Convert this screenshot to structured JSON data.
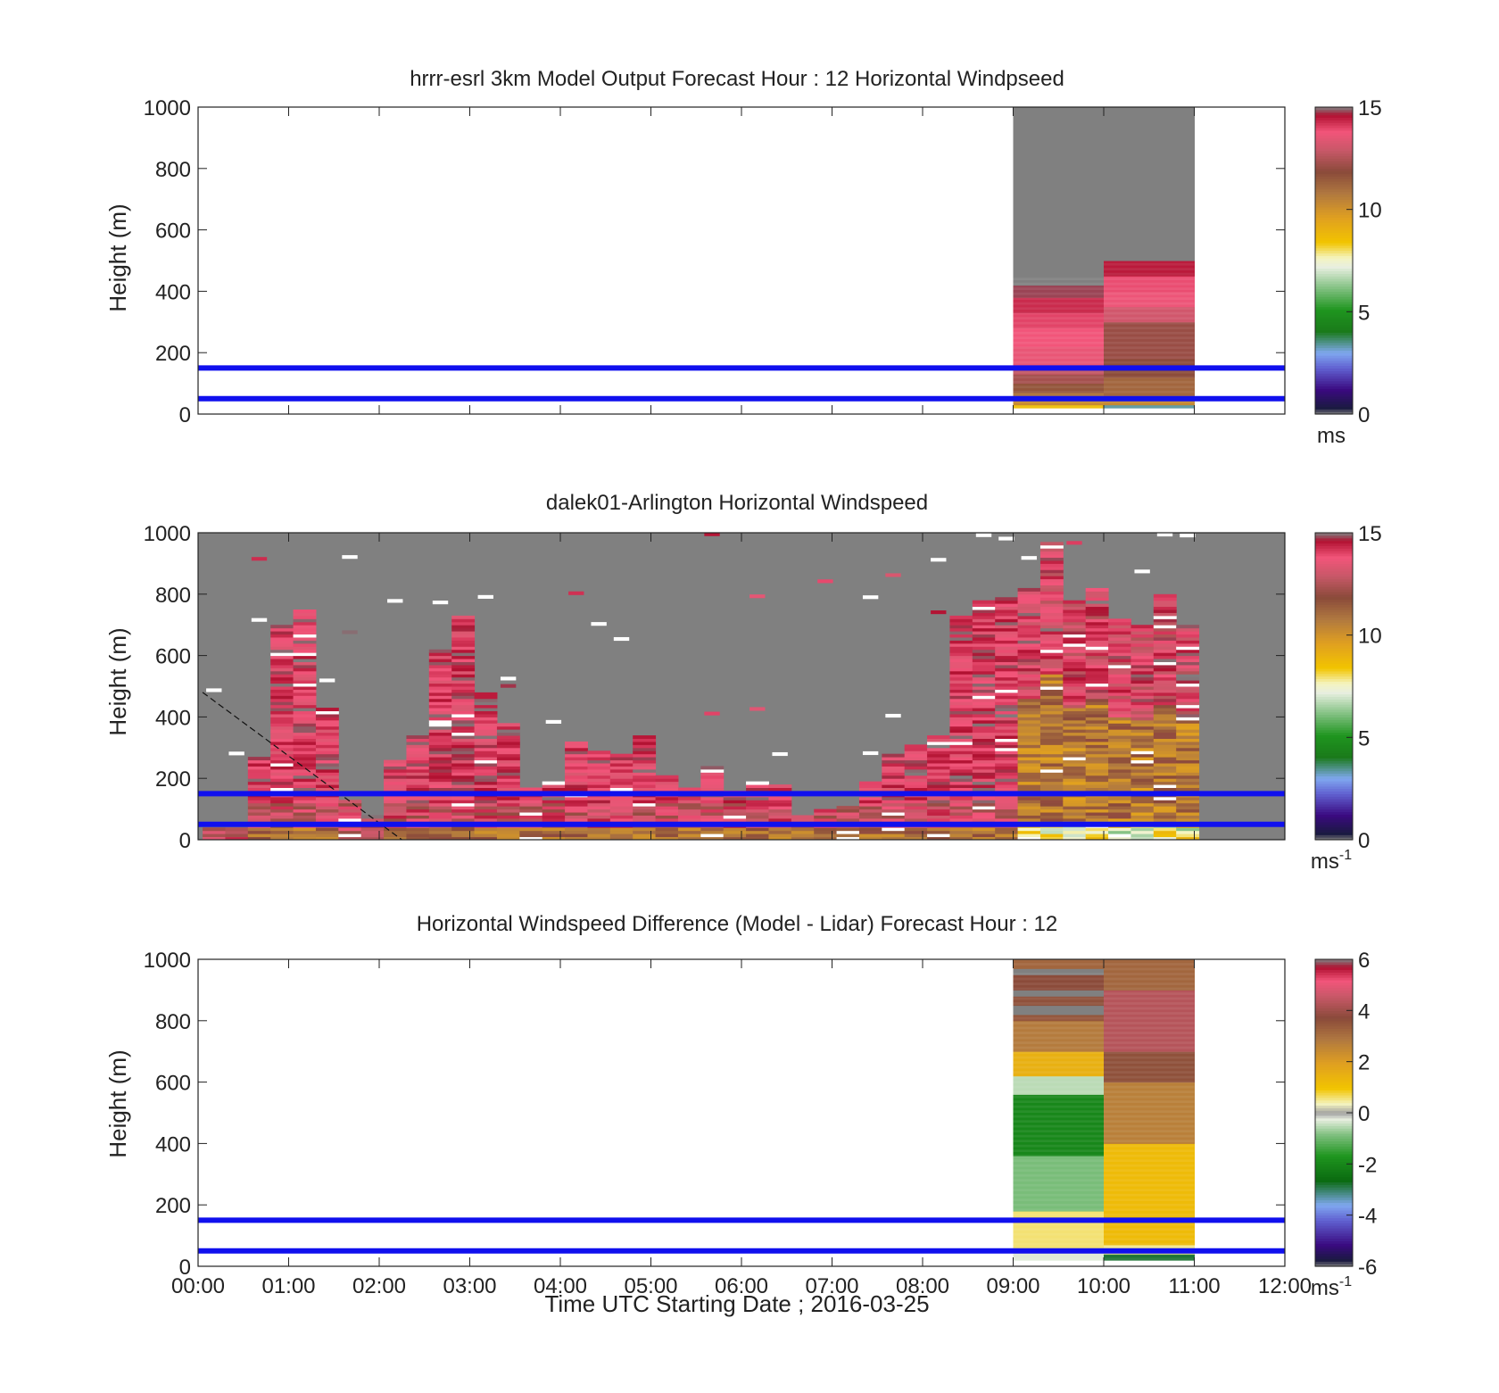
{
  "chart_data": [
    {
      "type": "heatmap",
      "title": "hrrr-esrl 3km Model Output   Forecast Hour : 12 Horizontal Windpseed",
      "ylabel": "Height (m)",
      "xlabel": "",
      "xlim": [
        0,
        12
      ],
      "ylim": [
        0,
        1000
      ],
      "xticks": [
        "00:00",
        "01:00",
        "02:00",
        "03:00",
        "04:00",
        "05:00",
        "06:00",
        "07:00",
        "08:00",
        "09:00",
        "10:00",
        "11:00",
        "12:00"
      ],
      "yticks": [
        0,
        200,
        400,
        600,
        800,
        1000
      ],
      "show_xtick_labels": false,
      "colorbar": {
        "min": 0,
        "max": 15,
        "ticks": [
          0,
          5,
          10,
          15
        ],
        "unit": "ms",
        "unit_sup": ""
      },
      "hlines": [
        50,
        150
      ],
      "columns": [
        {
          "t0": 9,
          "t1": 10,
          "cells": [
            {
              "z0": 20,
              "z1": 30,
              "v": 8.6
            },
            {
              "z0": 30,
              "z1": 50,
              "v": 10.2
            },
            {
              "z0": 50,
              "z1": 70,
              "v": 10.8
            },
            {
              "z0": 70,
              "z1": 100,
              "v": 11.6
            },
            {
              "z0": 100,
              "z1": 130,
              "v": 12.3
            },
            {
              "z0": 130,
              "z1": 160,
              "v": 12.8
            },
            {
              "z0": 160,
              "z1": 220,
              "v": 13.6
            },
            {
              "z0": 220,
              "z1": 280,
              "v": 13.8
            },
            {
              "z0": 280,
              "z1": 330,
              "v": 14.0
            },
            {
              "z0": 330,
              "z1": 380,
              "v": 14.3
            },
            {
              "z0": 380,
              "z1": 420,
              "v": 14.8
            },
            {
              "z0": 420,
              "z1": 450,
              "v": 15.0
            },
            {
              "z0": 450,
              "z1": 1000,
              "v": "nan"
            }
          ]
        },
        {
          "t0": 10,
          "t1": 11,
          "cells": [
            {
              "z0": 20,
              "z1": 30,
              "v": 3.4
            },
            {
              "z0": 30,
              "z1": 60,
              "v": 10.3
            },
            {
              "z0": 60,
              "z1": 120,
              "v": 11.2
            },
            {
              "z0": 120,
              "z1": 180,
              "v": 11.8
            },
            {
              "z0": 180,
              "z1": 300,
              "v": 12.1
            },
            {
              "z0": 300,
              "z1": 350,
              "v": 13.1
            },
            {
              "z0": 350,
              "z1": 400,
              "v": 13.7
            },
            {
              "z0": 400,
              "z1": 450,
              "v": 13.9
            },
            {
              "z0": 450,
              "z1": 500,
              "v": 14.5
            },
            {
              "z0": 500,
              "z1": 1000,
              "v": "nan"
            }
          ]
        }
      ]
    },
    {
      "type": "heatmap",
      "title": "dalek01-Arlington  Horizontal Windspeed",
      "ylabel": "Height (m)",
      "xlabel": "",
      "xlim": [
        0,
        12
      ],
      "ylim": [
        0,
        1000
      ],
      "xticks": [
        "00:00",
        "01:00",
        "02:00",
        "03:00",
        "04:00",
        "05:00",
        "06:00",
        "07:00",
        "08:00",
        "09:00",
        "10:00",
        "11:00",
        "12:00"
      ],
      "yticks": [
        0,
        200,
        400,
        600,
        800,
        1000
      ],
      "show_xtick_labels": false,
      "colorbar": {
        "min": 0,
        "max": 15,
        "ticks": [
          0,
          5,
          10,
          15
        ],
        "unit": "ms",
        "unit_sup": "-1"
      },
      "hlines": [
        50,
        150
      ],
      "background": "nan",
      "dashed_line": {
        "from": [
          0.05,
          480
        ],
        "to": [
          2.25,
          0
        ]
      },
      "column_width": 0.25,
      "column_tops": [
        40,
        40,
        270,
        700,
        750,
        430,
        130,
        80,
        260,
        340,
        620,
        730,
        480,
        380,
        170,
        190,
        320,
        290,
        280,
        340,
        210,
        170,
        240,
        160,
        190,
        180,
        80,
        100,
        110,
        190,
        280,
        310,
        340,
        730,
        780,
        790,
        820,
        970,
        780,
        820,
        720,
        700,
        800,
        700
      ],
      "column_kind": [
        "low",
        "low",
        "mix",
        "mix",
        "mix",
        "mix",
        "low",
        "low",
        "mix",
        "mix",
        "mix",
        "mix",
        "mix",
        "mix",
        "mix",
        "mix",
        "mix",
        "mix",
        "mix",
        "mix",
        "mix",
        "mix",
        "mix",
        "mix",
        "mix",
        "mix",
        "mix",
        "mix",
        "mix",
        "mix",
        "mix",
        "mix",
        "mix",
        "mix",
        "mix",
        "mix",
        "high",
        "high",
        "high",
        "high",
        "high",
        "high",
        "high",
        "high"
      ]
    },
    {
      "type": "heatmap",
      "title": "Horizontal Windspeed Difference (Model - Lidar) Forecast Hour : 12",
      "ylabel": "Height (m)",
      "xlabel": "Time UTC  Starting Date ; 2016-03-25",
      "xlim": [
        0,
        12
      ],
      "ylim": [
        0,
        1000
      ],
      "xticks": [
        "00:00",
        "01:00",
        "02:00",
        "03:00",
        "04:00",
        "05:00",
        "06:00",
        "07:00",
        "08:00",
        "09:00",
        "10:00",
        "11:00",
        "12:00"
      ],
      "yticks": [
        0,
        200,
        400,
        600,
        800,
        1000
      ],
      "show_xtick_labels": true,
      "colorbar": {
        "min": -6,
        "max": 6,
        "ticks": [
          -6,
          -4,
          -2,
          0,
          2,
          4,
          6
        ],
        "unit": "ms",
        "unit_sup": "-1"
      },
      "hlines": [
        50,
        150
      ],
      "columns": [
        {
          "t0": 9,
          "t1": 10,
          "cells": [
            {
              "z0": 20,
              "z1": 60,
              "v": -0.3
            },
            {
              "z0": 60,
              "z1": 180,
              "v": 0.6
            },
            {
              "z0": 180,
              "z1": 360,
              "v": -0.9
            },
            {
              "z0": 360,
              "z1": 560,
              "v": -2.0
            },
            {
              "z0": 560,
              "z1": 620,
              "v": -0.5
            },
            {
              "z0": 620,
              "z1": 700,
              "v": 1.5
            },
            {
              "z0": 700,
              "z1": 800,
              "v": 2.8
            },
            {
              "z0": 800,
              "z1": 820,
              "v": 3.5
            },
            {
              "z0": 820,
              "z1": 850,
              "v": "nan"
            },
            {
              "z0": 850,
              "z1": 880,
              "v": 3.6
            },
            {
              "z0": 880,
              "z1": 900,
              "v": "nan"
            },
            {
              "z0": 900,
              "z1": 950,
              "v": 3.7
            },
            {
              "z0": 950,
              "z1": 970,
              "v": "nan"
            },
            {
              "z0": 970,
              "z1": 1000,
              "v": 3.2
            }
          ]
        },
        {
          "t0": 10,
          "t1": 11,
          "cells": [
            {
              "z0": 20,
              "z1": 40,
              "v": -2.8
            },
            {
              "z0": 40,
              "z1": 70,
              "v": 0.5
            },
            {
              "z0": 70,
              "z1": 400,
              "v": 1.2
            },
            {
              "z0": 400,
              "z1": 600,
              "v": 2.7
            },
            {
              "z0": 600,
              "z1": 700,
              "v": 3.6
            },
            {
              "z0": 700,
              "z1": 900,
              "v": 4.3
            },
            {
              "z0": 900,
              "z1": 1000,
              "v": 3.2
            }
          ]
        }
      ]
    }
  ]
}
